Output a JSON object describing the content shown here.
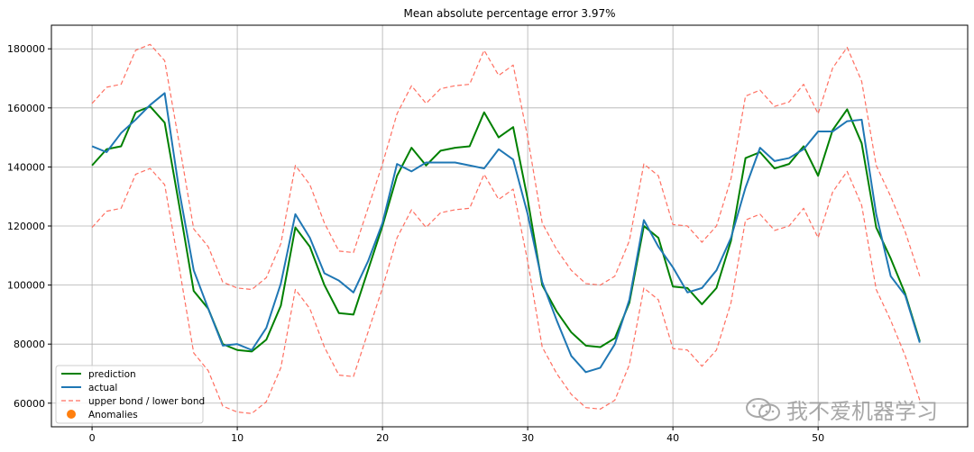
{
  "chart_data": {
    "type": "line",
    "title": "Mean absolute percentage error 3.97%",
    "xlabel": "",
    "ylabel": "",
    "xlim": [
      -2.8,
      60.3
    ],
    "ylim": [
      52000,
      188000
    ],
    "xticks": [
      0,
      10,
      20,
      30,
      40,
      50
    ],
    "yticks": [
      60000,
      80000,
      100000,
      120000,
      140000,
      160000,
      180000
    ],
    "x": [
      0,
      1,
      2,
      3,
      4,
      5,
      6,
      7,
      8,
      9,
      10,
      11,
      12,
      13,
      14,
      15,
      16,
      17,
      18,
      19,
      20,
      21,
      22,
      23,
      24,
      25,
      26,
      27,
      28,
      29,
      30,
      31,
      32,
      33,
      34,
      35,
      36,
      37,
      38,
      39,
      40,
      41,
      42,
      43,
      44,
      45,
      46,
      47,
      48,
      49,
      50,
      51,
      52,
      53,
      54,
      55,
      56,
      57
    ],
    "series": [
      {
        "name": "prediction",
        "color": "#008000",
        "values": [
          140500,
          146000,
          147000,
          158500,
          160500,
          155000,
          127000,
          98000,
          92000,
          80000,
          78000,
          77500,
          81500,
          93000,
          119500,
          113000,
          100000,
          90500,
          90000,
          105000,
          120000,
          137000,
          146500,
          140500,
          145500,
          146500,
          147000,
          158500,
          150000,
          153500,
          129000,
          100000,
          91000,
          84000,
          79500,
          79000,
          82000,
          94000,
          120000,
          116000,
          99500,
          99000,
          93500,
          99000,
          115000,
          143000,
          145000,
          139500,
          141000,
          147000,
          137000,
          152500,
          159500,
          148000,
          119500,
          109000,
          97000,
          81000
        ]
      },
      {
        "name": "actual",
        "color": "#1f77b4",
        "values": [
          147000,
          145000,
          151500,
          156000,
          161000,
          165000,
          132000,
          105000,
          92000,
          79500,
          80000,
          78000,
          85500,
          100500,
          124000,
          116000,
          104000,
          101500,
          97500,
          108000,
          121000,
          141000,
          138500,
          141500,
          141500,
          141500,
          140500,
          139500,
          146000,
          142500,
          124000,
          101000,
          88000,
          76000,
          70500,
          72000,
          80000,
          95000,
          122000,
          113000,
          106000,
          97500,
          99000,
          105000,
          116000,
          133000,
          146500,
          142000,
          143000,
          146000,
          152000,
          152000,
          155500,
          156000,
          124000,
          103000,
          96500,
          80500
        ]
      },
      {
        "name": "upper bond / lower bond",
        "color": "#ff6f61",
        "values": [
          161500,
          167000,
          168000,
          179500,
          181500,
          176000,
          148000,
          119000,
          113000,
          101000,
          99000,
          98500,
          102500,
          114000,
          140500,
          134000,
          121000,
          111500,
          111000,
          126000,
          141000,
          158000,
          167500,
          161500,
          166500,
          167500,
          168000,
          179500,
          171000,
          174500,
          150000,
          121000,
          112000,
          105000,
          100500,
          100000,
          103000,
          115000,
          141000,
          137000,
          120500,
          120000,
          114500,
          120000,
          136000,
          164000,
          166000,
          160500,
          162000,
          168000,
          158000,
          173500,
          180500,
          169000,
          140500,
          130000,
          118000,
          103000
        ]
      },
      {
        "name": "lower bond",
        "color": "#ff6f61",
        "values": [
          119500,
          125000,
          126000,
          137500,
          139500,
          134000,
          106000,
          77000,
          71000,
          59000,
          57000,
          56500,
          60500,
          72000,
          98500,
          92000,
          79000,
          69500,
          69000,
          84000,
          99000,
          116000,
          125500,
          119500,
          124500,
          125500,
          126000,
          137500,
          129000,
          132500,
          108000,
          79000,
          70000,
          63000,
          58500,
          58000,
          61000,
          73000,
          99000,
          95000,
          78500,
          78000,
          72500,
          78000,
          94000,
          122000,
          124000,
          118500,
          120000,
          126000,
          116000,
          131500,
          138500,
          127000,
          98500,
          88000,
          76000,
          61000
        ]
      }
    ],
    "anomalies": [],
    "legend": {
      "position": "lower-left",
      "entries": [
        {
          "label": "prediction",
          "style": "line",
          "color": "#008000"
        },
        {
          "label": "actual",
          "style": "line",
          "color": "#1f77b4"
        },
        {
          "label": "upper bond / lower bond",
          "style": "dashed",
          "color": "#ff6f61"
        },
        {
          "label": "Anomalies",
          "style": "dot",
          "color": "#ff7f0e"
        }
      ]
    },
    "grid": true
  },
  "watermark": {
    "text": "我不爱机器学习",
    "icon": "wechat-icon"
  }
}
